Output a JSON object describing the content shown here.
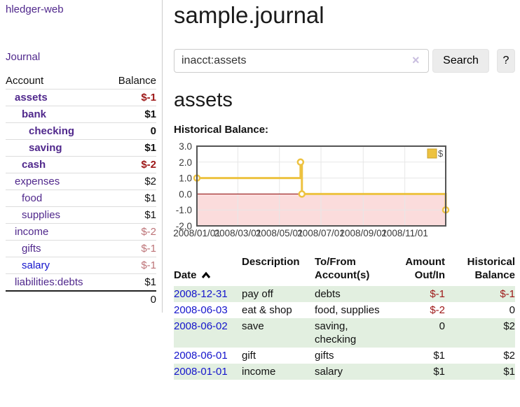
{
  "sidebar": {
    "brand": "hledger-web",
    "nav": {
      "journal": "Journal"
    },
    "accounts": {
      "headers": {
        "account": "Account",
        "balance": "Balance"
      },
      "rows": [
        {
          "name": "assets",
          "balance": "$-1"
        },
        {
          "name": "bank",
          "balance": "$1"
        },
        {
          "name": "checking",
          "balance": "0"
        },
        {
          "name": "saving",
          "balance": "$1"
        },
        {
          "name": "cash",
          "balance": "$-2"
        },
        {
          "name": "expenses",
          "balance": "$2"
        },
        {
          "name": "food",
          "balance": "$1"
        },
        {
          "name": "supplies",
          "balance": "$1"
        },
        {
          "name": "income",
          "balance": "$-2"
        },
        {
          "name": "gifts",
          "balance": "$-1"
        },
        {
          "name": "salary",
          "balance": "$-1"
        },
        {
          "name": "liabilities:debts",
          "balance": "$1"
        }
      ],
      "total": "0"
    }
  },
  "header": {
    "title": "sample.journal"
  },
  "search": {
    "value": "inacct:assets",
    "clear_icon": "×",
    "button_label": "Search",
    "help_label": "?"
  },
  "account_page": {
    "title": "assets",
    "chart_label": "Historical Balance:"
  },
  "chart_data": {
    "type": "line",
    "style": "step",
    "title": "Historical Balance:",
    "x_unit": "days since 2008-01-01",
    "xrange": [
      0,
      365
    ],
    "ylim": [
      -2,
      3
    ],
    "yticks": [
      3.0,
      2.0,
      1.0,
      0.0,
      -1.0,
      -2.0
    ],
    "xticks": [
      {
        "t": 0,
        "label": "2008/01/01"
      },
      {
        "t": 60,
        "label": "2008/03/01"
      },
      {
        "t": 121,
        "label": "2008/05/01"
      },
      {
        "t": 182,
        "label": "2008/07/01"
      },
      {
        "t": 244,
        "label": "2008/09/01"
      },
      {
        "t": 305,
        "label": "2008/11/01"
      }
    ],
    "series": [
      {
        "name": "$",
        "color": "#edc240",
        "points": [
          [
            0,
            1
          ],
          [
            152,
            2
          ],
          [
            154,
            0
          ],
          [
            365,
            -1
          ]
        ]
      }
    ],
    "legend": [
      {
        "label": "$",
        "color": "#edc240"
      }
    ],
    "legend_position": "top-right",
    "grid": true,
    "zero_line_color": "#8b0000",
    "below_zero_fill": "#fbdcdc"
  },
  "register": {
    "headers": {
      "date": "Date",
      "description": "Description",
      "accounts": "To/From\nAccount(s)",
      "amount": "Amount\nOut/In",
      "balance": "Historical\nBalance"
    },
    "rows": [
      {
        "date": "2008-12-31",
        "description": "pay off",
        "accounts": "debts",
        "amount": "$-1",
        "balance": "$-1"
      },
      {
        "date": "2008-06-03",
        "description": "eat & shop",
        "accounts": "food, supplies",
        "amount": "$-2",
        "balance": "0"
      },
      {
        "date": "2008-06-02",
        "description": "save",
        "accounts": "saving, checking",
        "amount": "0",
        "balance": "$2"
      },
      {
        "date": "2008-06-01",
        "description": "gift",
        "accounts": "gifts",
        "amount": "$1",
        "balance": "$2"
      },
      {
        "date": "2008-01-01",
        "description": "income",
        "accounts": "salary",
        "amount": "$1",
        "balance": "$1"
      }
    ]
  },
  "colors": {
    "link_purple": "#50288c",
    "link_blue": "#1414cc",
    "negative_strong": "#9d1717",
    "negative_muted": "#bd7377",
    "row_green": "#e2efe0",
    "chart_series": "#edc240",
    "chart_zero_line": "#8b0000",
    "chart_below_zero": "#fbdcdc",
    "chart_border": "#545454"
  }
}
